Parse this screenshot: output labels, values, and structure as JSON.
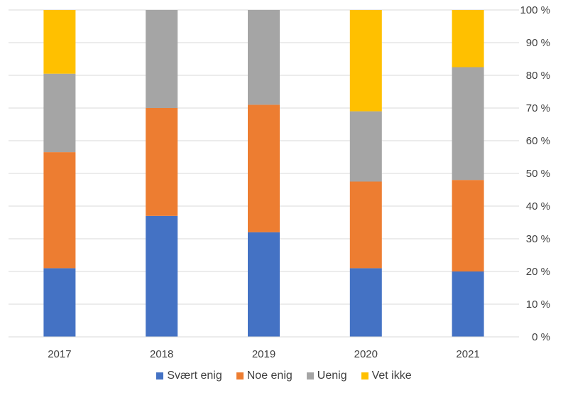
{
  "chart_data": {
    "type": "bar",
    "stacked": true,
    "categories": [
      "2017",
      "2018",
      "2019",
      "2020",
      "2021"
    ],
    "series": [
      {
        "name": "Svært enig",
        "color": "#4472C4",
        "values": [
          21,
          37,
          32,
          21,
          20
        ]
      },
      {
        "name": "Noe enig",
        "color": "#ED7D31",
        "values": [
          35.5,
          33,
          39,
          26.5,
          28
        ]
      },
      {
        "name": "Uenig",
        "color": "#A5A5A5",
        "values": [
          24,
          30,
          29,
          21.5,
          34.5
        ]
      },
      {
        "name": "Vet ikke",
        "color": "#FFC000",
        "values": [
          19.5,
          0,
          0,
          31,
          17.5
        ]
      }
    ],
    "y_ticks": [
      "0 %",
      "10 %",
      "20 %",
      "30 %",
      "40 %",
      "50 %",
      "60 %",
      "70 %",
      "80 %",
      "90 %",
      "100 %"
    ],
    "ylim": [
      0,
      100
    ],
    "grid": true,
    "y_axis_position": "right",
    "legend_position": "bottom",
    "title": "",
    "xlabel": "",
    "ylabel": ""
  }
}
